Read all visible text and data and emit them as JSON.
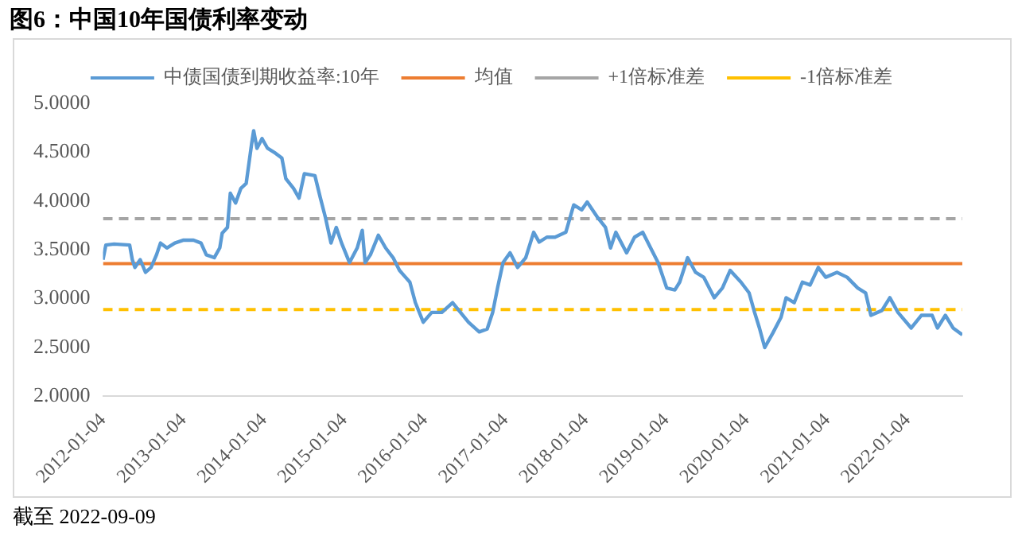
{
  "chart_data": {
    "type": "line",
    "title": "图6：中国10年国债利率变动",
    "annotations": [
      "截至 2022-09-09"
    ],
    "x": [
      "2012-01-04",
      "2012-01-17",
      "2012-02-23",
      "2012-05-04",
      "2012-05-16",
      "2012-05-28",
      "2012-06-21",
      "2012-07-15",
      "2012-08-09",
      "2012-09-03",
      "2012-09-21",
      "2012-10-20",
      "2012-11-25",
      "2013-01-04",
      "2013-02-18",
      "2013-03-24",
      "2013-04-17",
      "2013-05-23",
      "2013-06-17",
      "2013-06-28",
      "2013-07-22",
      "2013-08-04",
      "2013-08-28",
      "2013-09-21",
      "2013-10-15",
      "2013-11-09",
      "2013-11-18",
      "2013-12-03",
      "2013-12-26",
      "2014-01-20",
      "2014-02-25",
      "2014-03-26",
      "2014-04-13",
      "2014-05-18",
      "2014-06-12",
      "2014-07-06",
      "2014-08-23",
      "2014-09-17",
      "2014-10-10",
      "2014-11-04",
      "2014-11-28",
      "2014-12-22",
      "2015-01-27",
      "2015-03-03",
      "2015-03-26",
      "2015-04-08",
      "2015-05-02",
      "2015-06-07",
      "2015-07-10",
      "2015-08-13",
      "2015-09-11",
      "2015-10-28",
      "2015-11-22",
      "2015-12-28",
      "2016-02-04",
      "2016-03-21",
      "2016-05-09",
      "2016-06-14",
      "2016-07-20",
      "2016-09-07",
      "2016-10-13",
      "2016-11-07",
      "2016-11-30",
      "2016-12-24",
      "2017-01-25",
      "2017-02-28",
      "2017-04-06",
      "2017-05-12",
      "2017-06-06",
      "2017-07-11",
      "2017-08-17",
      "2017-10-05",
      "2017-11-10",
      "2017-12-16",
      "2018-01-10",
      "2018-02-27",
      "2018-04-03",
      "2018-04-26",
      "2018-05-20",
      "2018-07-08",
      "2018-08-13",
      "2018-09-19",
      "2018-10-25",
      "2018-11-28",
      "2019-01-06",
      "2019-02-12",
      "2019-03-06",
      "2019-04-11",
      "2019-05-17",
      "2019-06-23",
      "2019-08-10",
      "2019-09-16",
      "2019-10-21",
      "2019-12-09",
      "2020-01-15",
      "2020-02-09",
      "2020-03-02",
      "2020-03-26",
      "2020-05-02",
      "2020-06-08",
      "2020-07-01",
      "2020-08-07",
      "2020-09-13",
      "2020-10-18",
      "2020-11-24",
      "2020-12-28",
      "2021-02-17",
      "2021-04-04",
      "2021-05-22",
      "2021-06-27",
      "2021-07-21",
      "2021-09-09",
      "2021-10-15",
      "2021-11-21",
      "2022-01-20",
      "2022-03-07",
      "2022-04-25",
      "2022-05-19",
      "2022-06-24",
      "2022-07-29",
      "2022-09-09"
    ],
    "series": [
      {
        "name": "中债国债到期收益率:10年",
        "color": "#5b9bd5",
        "values": [
          3.4,
          3.55,
          3.56,
          3.55,
          3.4,
          3.32,
          3.4,
          3.27,
          3.32,
          3.45,
          3.57,
          3.52,
          3.57,
          3.6,
          3.6,
          3.57,
          3.45,
          3.42,
          3.52,
          3.67,
          3.73,
          4.08,
          3.98,
          4.13,
          4.18,
          4.59,
          4.72,
          4.54,
          4.64,
          4.54,
          4.49,
          4.44,
          4.23,
          4.13,
          4.03,
          4.28,
          4.26,
          4.03,
          3.83,
          3.57,
          3.73,
          3.57,
          3.37,
          3.52,
          3.7,
          3.37,
          3.45,
          3.65,
          3.52,
          3.42,
          3.29,
          3.17,
          2.96,
          2.76,
          2.86,
          2.86,
          2.96,
          2.86,
          2.76,
          2.66,
          2.69,
          2.86,
          3.12,
          3.37,
          3.47,
          3.32,
          3.42,
          3.68,
          3.58,
          3.63,
          3.63,
          3.68,
          3.96,
          3.91,
          3.99,
          3.83,
          3.73,
          3.52,
          3.68,
          3.47,
          3.63,
          3.68,
          3.52,
          3.37,
          3.11,
          3.09,
          3.17,
          3.42,
          3.27,
          3.22,
          3.01,
          3.11,
          3.29,
          3.17,
          3.06,
          2.86,
          2.7,
          2.5,
          2.65,
          2.81,
          3.01,
          2.96,
          3.17,
          3.14,
          3.32,
          3.22,
          3.27,
          3.22,
          3.11,
          3.06,
          2.83,
          2.88,
          3.01,
          2.86,
          2.7,
          2.83,
          2.83,
          2.7,
          2.83,
          2.7,
          2.63
        ]
      }
    ],
    "ref_lines": [
      {
        "axis": "y",
        "value": 3.36,
        "label": "均值",
        "color": "#ed7d31",
        "line_style": "solid"
      },
      {
        "axis": "y",
        "value": 3.82,
        "label": "+1倍标准差",
        "color": "#a5a5a5",
        "line_style": "dashed"
      },
      {
        "axis": "y",
        "value": 2.89,
        "label": "-1倍标准差",
        "color": "#ffc000",
        "line_style": "dashed"
      }
    ],
    "xlim": [
      "2012-01-04",
      "2022-09-09"
    ],
    "xticks": [
      "2012-01-04",
      "2013-01-04",
      "2014-01-04",
      "2015-01-04",
      "2016-01-04",
      "2017-01-04",
      "2018-01-04",
      "2019-01-04",
      "2020-01-04",
      "2021-01-04",
      "2022-01-04"
    ],
    "ylim": [
      2,
      5
    ],
    "yticks": [
      {
        "value": 2,
        "label": "2.0000"
      },
      {
        "value": 2.5,
        "label": "2.5000"
      },
      {
        "value": 3,
        "label": "3.0000"
      },
      {
        "value": 3.5,
        "label": "3.5000"
      },
      {
        "value": 4,
        "label": "4.0000"
      },
      {
        "value": 4.5,
        "label": "4.5000"
      },
      {
        "value": 5,
        "label": "5.0000"
      }
    ],
    "grid": false,
    "legend": "top",
    "line_style": "solid",
    "marker": "none"
  }
}
